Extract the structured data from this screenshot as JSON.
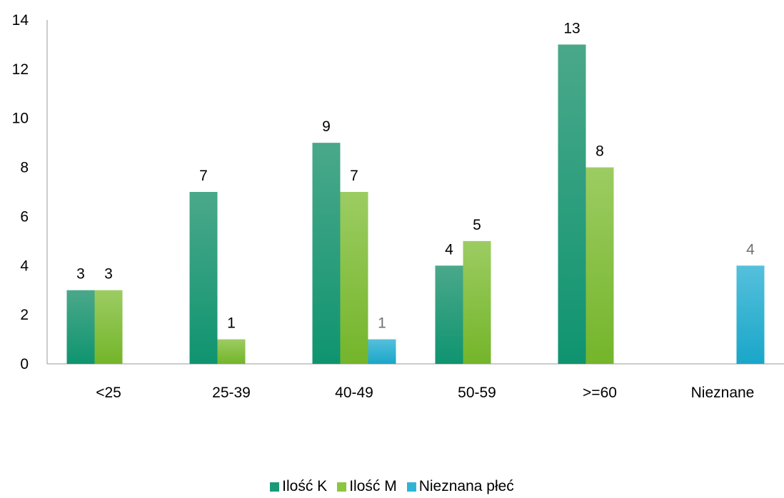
{
  "chart_data": {
    "type": "bar",
    "categories": [
      "<25",
      "25-39",
      "40-49",
      "50-59",
      ">=60",
      "Nieznane"
    ],
    "series": [
      {
        "name": "Ilość K",
        "values": [
          3,
          7,
          9,
          4,
          13,
          null
        ],
        "color": "#1a9a78"
      },
      {
        "name": "Ilość M",
        "values": [
          3,
          1,
          7,
          5,
          8,
          null
        ],
        "color": "#8cc63f"
      },
      {
        "name": "Nieznana płeć",
        "values": [
          null,
          null,
          1,
          null,
          null,
          4
        ],
        "color": "#30b4d6"
      }
    ],
    "y_ticks": [
      "0",
      "2",
      "4",
      "6",
      "8",
      "10",
      "12",
      "14"
    ],
    "ylim": [
      0,
      14
    ],
    "grid": false,
    "legend_position": "bottom",
    "title": "",
    "xlabel": "",
    "ylabel": ""
  }
}
